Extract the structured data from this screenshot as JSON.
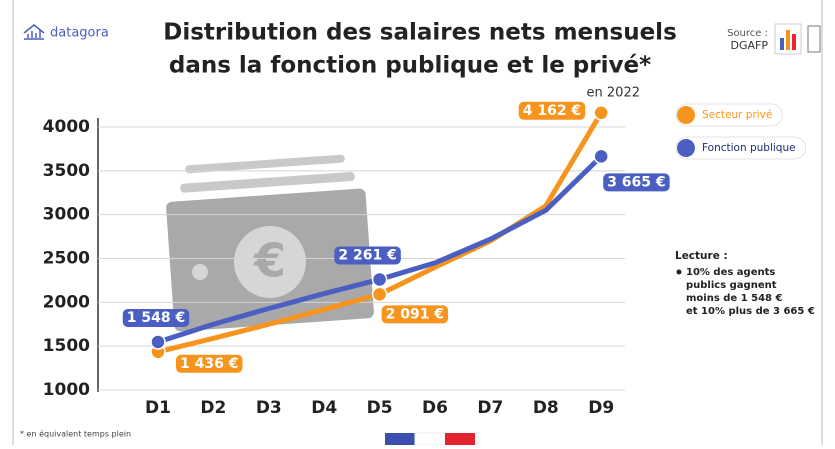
{
  "header": {
    "logo": "datagora",
    "title": [
      "Distribution des salaires nets mensuels",
      "dans la fonction publique et le privé*"
    ],
    "subtitle": "en 2022"
  },
  "source": {
    "label": "Source :",
    "name": "DGAFP"
  },
  "chart_data": {
    "type": "line",
    "categories": [
      "D1",
      "D2",
      "D3",
      "D4",
      "D5",
      "D6",
      "D7",
      "D8",
      "D9"
    ],
    "series": [
      {
        "name": "Secteur privé",
        "color": "#f7941d",
        "values": [
          1436,
          1590,
          1750,
          1920,
          2091,
          2400,
          2700,
          3100,
          4162
        ],
        "value_labels": [
          "1 436 €",
          null,
          null,
          null,
          "2 091 €",
          null,
          null,
          null,
          "4 162 €"
        ]
      },
      {
        "name": "Fonction publique",
        "color": "#4a5fc1",
        "values": [
          1548,
          1750,
          1930,
          2100,
          2261,
          2450,
          2720,
          3050,
          3665
        ],
        "value_labels": [
          "1 548 €",
          null,
          null,
          null,
          "2 261 €",
          null,
          null,
          null,
          "3 665 €"
        ]
      }
    ],
    "ylim": [
      1000,
      4000
    ],
    "yticks": [
      1000,
      1500,
      2000,
      2500,
      3000,
      3500,
      4000
    ],
    "grid": true
  },
  "reading": {
    "title": "Lecture :",
    "lines": [
      "10% des agents",
      "publics gagnent",
      "moins de 1 548 €",
      "et 10% plus de 3 665 €"
    ]
  },
  "footnote": "* en équivalent temps plein"
}
